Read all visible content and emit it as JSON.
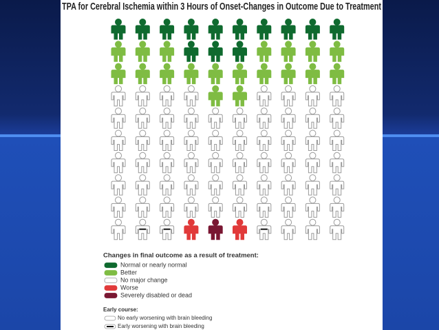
{
  "chart_data": {
    "type": "pictograph",
    "title": "TPA for Cerebral Ischemia within 3 Hours of Onset-Changes in Outcome Due to Treatment",
    "legend_title": "Changes in final outcome as a result of treatment:",
    "categories": [
      "Normal or nearly normal",
      "Better",
      "No major change",
      "Worse",
      "Severely disabled or dead"
    ],
    "colors": [
      "#0f6a2f",
      "#7fbc43",
      "#ffffff",
      "#e13a3a",
      "#7a1732"
    ],
    "cells": [
      [
        0,
        0,
        0,
        0,
        0,
        0,
        0,
        0,
        0,
        0
      ],
      [
        1,
        1,
        1,
        0,
        0,
        0,
        1,
        1,
        1,
        1
      ],
      [
        1,
        1,
        1,
        1,
        1,
        1,
        1,
        1,
        1,
        1
      ],
      [
        2,
        2,
        2,
        2,
        1,
        1,
        2,
        2,
        2,
        2
      ],
      [
        2,
        2,
        2,
        2,
        2,
        2,
        2,
        2,
        2,
        2
      ],
      [
        2,
        2,
        2,
        2,
        2,
        2,
        2,
        2,
        2,
        2
      ],
      [
        2,
        2,
        2,
        2,
        2,
        2,
        2,
        2,
        2,
        2
      ],
      [
        2,
        2,
        2,
        2,
        2,
        2,
        2,
        2,
        2,
        2
      ],
      [
        2,
        2,
        2,
        2,
        2,
        2,
        2,
        2,
        2,
        2
      ],
      [
        2,
        2,
        2,
        3,
        4,
        3,
        2,
        2,
        2,
        2
      ]
    ],
    "early_course_title": "Early course:",
    "early_course": [
      "No early worsening with brain bleeding",
      "Early worsening with brain bleeding"
    ],
    "early_worsening": [
      [
        9,
        1
      ],
      [
        9,
        2
      ],
      [
        9,
        6
      ]
    ]
  }
}
